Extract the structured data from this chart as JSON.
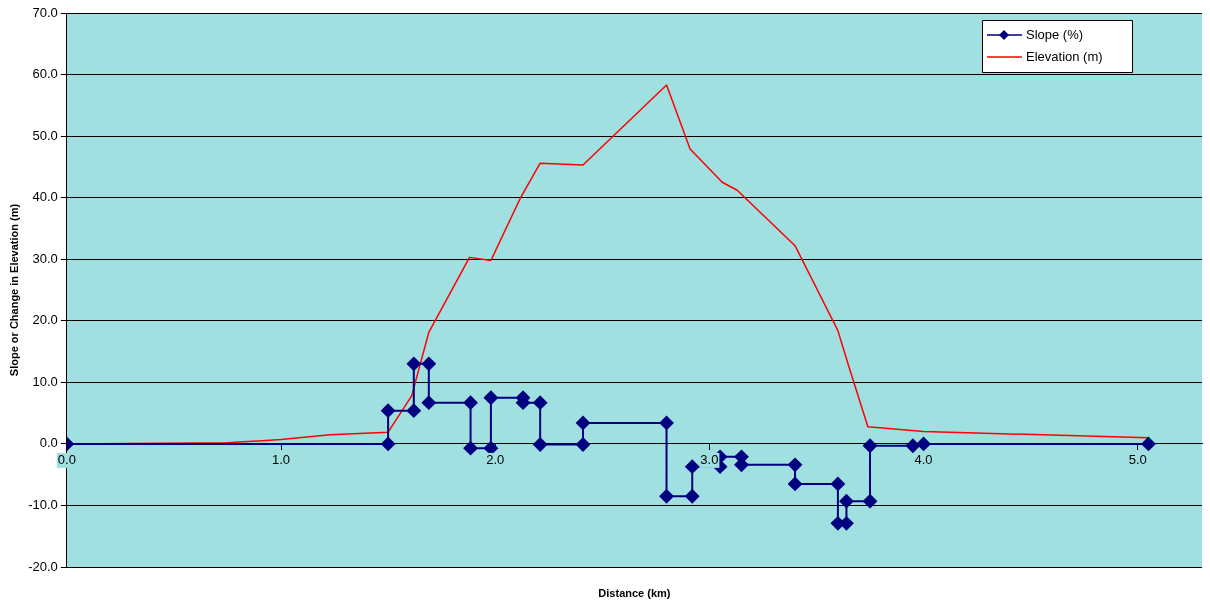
{
  "chart_data": {
    "type": "line",
    "xlabel": "Distance (km)",
    "ylabel": "Slope or Change in Elevation (m)",
    "xlim": [
      0,
      5.3
    ],
    "xticks": [
      {
        "value": 0,
        "label": "0.0"
      },
      {
        "value": 1,
        "label": "1.0"
      },
      {
        "value": 2,
        "label": "2.0"
      },
      {
        "value": 3,
        "label": "3.0"
      },
      {
        "value": 4,
        "label": "4.0"
      },
      {
        "value": 5,
        "label": "5.0"
      }
    ],
    "ylim": [
      -20,
      70
    ],
    "yticks": [
      {
        "value": -20,
        "label": "-20.0"
      },
      {
        "value": -10,
        "label": "-10.0"
      },
      {
        "value": 0,
        "label": "0.0"
      },
      {
        "value": 10,
        "label": "10.0"
      },
      {
        "value": 20,
        "label": "20.0"
      },
      {
        "value": 30,
        "label": "30.0"
      },
      {
        "value": 40,
        "label": "40.0"
      },
      {
        "value": 50,
        "label": "50.0"
      },
      {
        "value": 60,
        "label": "60.0"
      },
      {
        "value": 70,
        "label": "70.0"
      }
    ],
    "grid": "y",
    "legend": "top right",
    "series": [
      {
        "name": "Slope (%)",
        "color": "#000080",
        "marker": "diamond",
        "x": [
          0,
          1.5,
          1.5,
          1.62,
          1.62,
          1.69,
          1.69,
          1.885,
          1.885,
          1.98,
          1.98,
          2.13,
          2.13,
          2.21,
          2.21,
          2.41,
          2.41,
          2.8,
          2.8,
          2.92,
          2.92,
          3.05,
          3.05,
          3.15,
          3.15,
          3.4,
          3.4,
          3.6,
          3.6,
          3.64,
          3.64,
          3.75,
          3.75,
          3.95,
          4.0,
          5.05
        ],
        "values": [
          0,
          0,
          5.4,
          5.4,
          13,
          13,
          6.7,
          6.7,
          -0.7,
          -0.7,
          7.5,
          7.5,
          6.7,
          6.7,
          -0.1,
          -0.1,
          3.4,
          3.4,
          -8.5,
          -8.5,
          -3.7,
          -3.7,
          -2.1,
          -2.1,
          -3.4,
          -3.4,
          -6.5,
          -6.5,
          -12.9,
          -12.9,
          -9.3,
          -9.3,
          -0.3,
          -0.3,
          0,
          0
        ]
      },
      {
        "name": "Elevation (m)",
        "color": "#ff0000",
        "marker": "none",
        "x": [
          0,
          0.75,
          1.0,
          1.23,
          1.5,
          1.61,
          1.69,
          1.88,
          1.98,
          2.12,
          2.21,
          2.41,
          2.8,
          2.91,
          3.06,
          3.13,
          3.4,
          3.6,
          3.65,
          3.74,
          4.0,
          5.05
        ],
        "values": [
          0,
          0.2,
          0.7,
          1.5,
          1.9,
          7.8,
          18.1,
          30.3,
          29.8,
          40.1,
          45.6,
          45.3,
          58.3,
          47.9,
          42.5,
          41.2,
          32.2,
          18.4,
          12.7,
          2.8,
          2.0,
          1.0
        ]
      }
    ]
  }
}
